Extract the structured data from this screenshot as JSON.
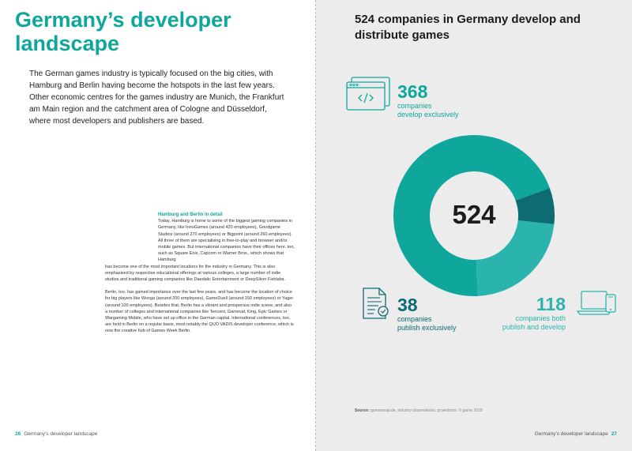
{
  "left_page": {
    "title": "Germany’s developer landscape",
    "intro": "The German games industry is typically focused on the big cities, with Hamburg and Berlin having become the hotspots in the last few years. Other economic centres for the games industry are Munich, the Frankfurt am Main region and the catchment area of Cologne and Düsseldorf, where most developers and publishers are based.",
    "sidebox": {
      "heading": "Hamburg and Berlin in detail",
      "para1_indented": "Today, Hamburg is home to some of the biggest gaming companies in Germany, like InnoGames (around 420 employees), Goodgame Studios (around 270 employees) or Bigpoint (around 260 employees). All three of them are specialising in free-to-play and browser and/or mobile games. But international companies have their offices here, too, such as Square Enix, Capcom or Warner Bros., which shows that Hamburg",
      "para1_rest": "has become one of the most important locations for the industry in Germany. This is also emphasised by respective educational offerings at various colleges, a large number of indie studios and traditional gaming companies like Daedalic Entertainment or DeepSilver Fishlabs.",
      "para2": "Berlin, too, has gained importance over the last few years, and has become the location of choice for big players like Wooga (around 200 employees), GameDuell (around 150 employees) or Yager (around 100 employees). Besides that, Berlin has a vibrant and prosperous indie scene, and also a number of colleges and international companies like Tencent, Gameval, King, Epic Games or Wargaming Mobile, who have set up office in the German capital. International conferences, too, are held in Berlin on a regular basis, most notably the QUO VADIS developer conference, which is now the creative hub of Games Week Berlin."
    },
    "footer": {
      "page": "26",
      "text": "Germany’s developer landscape"
    }
  },
  "right_page": {
    "title": "524 companies in Germany develop and distribute games",
    "total": "524",
    "stats": {
      "develop": {
        "number": "368",
        "line1": "companies",
        "line2": "develop exclusively"
      },
      "publish": {
        "number": "38",
        "line1": "companies",
        "line2": "publish exclusively"
      },
      "both": {
        "number": "118",
        "line1": "companies both",
        "line2": "publish and develop"
      }
    },
    "source_label": "Source:",
    "source_text": "gamesmap.de, industry observations, projections: © game 2019",
    "footer": {
      "page": "27",
      "text": "Germany’s developer landscape"
    }
  },
  "colors": {
    "teal": "#0fa79c",
    "light_teal": "#2ab4ad",
    "dark_teal": "#0c6b73",
    "page_grey": "#ececec"
  },
  "chart_data": {
    "type": "pie",
    "title": "524 companies in Germany develop and distribute games",
    "categories": [
      "develop exclusively",
      "companies both publish and develop",
      "publish exclusively"
    ],
    "values": [
      368,
      118,
      38
    ],
    "center_label": "524",
    "colors": [
      "#0fa79c",
      "#2ab4ad",
      "#0c6b73"
    ]
  }
}
